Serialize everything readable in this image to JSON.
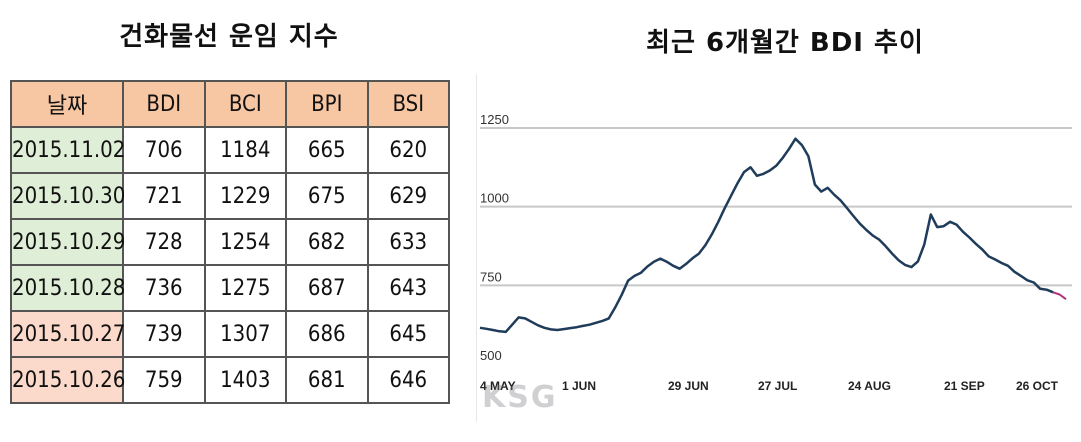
{
  "left_title": "건화물선 운임 지수",
  "right_title": "최근 6개월간 BDI 추이",
  "table": {
    "headers": [
      "날짜",
      "BDI",
      "BCI",
      "BPI",
      "BSI"
    ],
    "rows": [
      [
        "2015.11.02",
        "706",
        "1184",
        "665",
        "620"
      ],
      [
        "2015.10.30",
        "721",
        "1229",
        "675",
        "629"
      ],
      [
        "2015.10.29",
        "728",
        "1254",
        "682",
        "633"
      ],
      [
        "2015.10.28",
        "736",
        "1275",
        "687",
        "643"
      ],
      [
        "2015.10.27",
        "739",
        "1307",
        "686",
        "645"
      ],
      [
        "2015.10.26",
        "759",
        "1403",
        "681",
        "646"
      ]
    ]
  },
  "watermark": "KSG",
  "colors": {
    "header_bg": "#f7c6a3",
    "date_green": "#dfeed6",
    "date_peach": "#fbdacb",
    "line": "#1f3c5a",
    "line_end": "#b0307a",
    "grid": "#c8c8c8"
  },
  "chart_data": {
    "type": "line",
    "title": "최근 6개월간 BDI 추이",
    "ylim": [
      500,
      1250
    ],
    "yticks": [
      "1250",
      "1000",
      "750",
      "500"
    ],
    "xtick_labels": [
      "4 MAY",
      "1 JUN",
      "29 JUN",
      "27 JUL",
      "24 AUG",
      "21 SEP",
      "26 OCT"
    ],
    "grid": true,
    "series": [
      {
        "values": [
          615,
          612,
          608,
          604,
          602,
          625,
          648,
          645,
          634,
          623,
          615,
          610,
          608,
          611,
          614,
          617,
          621,
          625,
          631,
          637,
          645,
          680,
          720,
          765,
          780,
          790,
          810,
          825,
          835,
          825,
          812,
          803,
          818,
          836,
          851,
          878,
          912,
          952,
          995,
          1035,
          1075,
          1110,
          1125,
          1098,
          1104,
          1115,
          1130,
          1155,
          1184,
          1216,
          1195,
          1160,
          1070,
          1048,
          1060,
          1038,
          1020,
          995,
          970,
          946,
          926,
          908,
          895,
          874,
          851,
          830,
          815,
          808,
          826,
          880,
          975,
          935,
          938,
          952,
          943,
          920,
          902,
          882,
          864,
          842,
          832,
          821,
          812,
          793,
          780,
          766,
          759,
          739,
          736,
          728,
          721,
          706
        ]
      }
    ]
  }
}
